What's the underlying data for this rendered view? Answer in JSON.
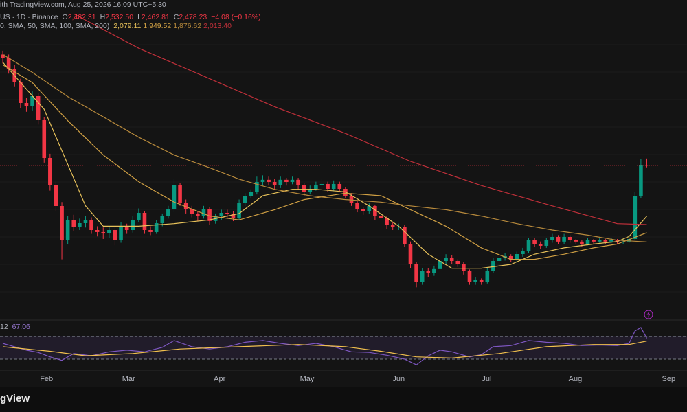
{
  "header": {
    "line1": "ith TradingView.com, Aug 25, 2026 16:09 UTC+5:30",
    "symbol": "US · 1D · Binance",
    "ohlc": [
      {
        "key": "O",
        "value": "2,482.31"
      },
      {
        "key": "H",
        "value": "2,532.50"
      },
      {
        "key": "L",
        "value": "2,462.81"
      },
      {
        "key": "C",
        "value": "2,478.23"
      }
    ],
    "change": "−4.08 (−0.16%)",
    "ma_params": "0, SMA, 50, SMA, 100, SMA, 200)",
    "ma_values": [
      "2,079.11",
      "1,949.52",
      "1,876.62",
      "2,013.40"
    ],
    "rsi_param": "12",
    "rsi_value": "67.06"
  },
  "chart_data": [
    {
      "type": "candlestick",
      "up_color": "#089981",
      "down_color": "#f23645",
      "xlim": [
        -0.47,
        115.8
      ],
      "ylim": [
        1268,
        3779
      ],
      "xticks": [
        {
          "value": 7.4,
          "label": "Feb"
        },
        {
          "value": 21.3,
          "label": "Mar"
        },
        {
          "value": 36.7,
          "label": "Apr"
        },
        {
          "value": 51.5,
          "label": "May"
        },
        {
          "value": 67,
          "label": "Jun"
        },
        {
          "value": 81.9,
          "label": "Jul"
        },
        {
          "value": 96.9,
          "label": "Aug"
        },
        {
          "value": 112.7,
          "label": "Sep"
        }
      ],
      "candles": [
        [
          3350,
          3380,
          3280,
          3320
        ],
        [
          3320,
          3350,
          3200,
          3239
        ],
        [
          3239,
          3270,
          3100,
          3131
        ],
        [
          3131,
          3160,
          2930,
          2969
        ],
        [
          2969,
          3010,
          2900,
          2942
        ],
        [
          2942,
          3060,
          2910,
          3023
        ],
        [
          3023,
          3050,
          2800,
          2834
        ],
        [
          2834,
          2860,
          2500,
          2537
        ],
        [
          2537,
          2570,
          2280,
          2321
        ],
        [
          2321,
          2350,
          2120,
          2159
        ],
        [
          2159,
          2190,
          1740,
          1889
        ],
        [
          1889,
          2080,
          1860,
          2051
        ],
        [
          2051,
          2090,
          1960,
          1997
        ],
        [
          1997,
          2060,
          1970,
          2024
        ],
        [
          2024,
          2080,
          1990,
          2051
        ],
        [
          2051,
          2070,
          1940,
          1970
        ],
        [
          1970,
          2000,
          1920,
          1954
        ],
        [
          1954,
          1990,
          1900,
          1943
        ],
        [
          1943,
          2000,
          1910,
          1970
        ],
        [
          1970,
          1990,
          1850,
          1889
        ],
        [
          1889,
          2030,
          1870,
          1997
        ],
        [
          1997,
          2020,
          1940,
          1970
        ],
        [
          1970,
          2080,
          1950,
          2051
        ],
        [
          2051,
          2140,
          2030,
          2105
        ],
        [
          2105,
          2120,
          1940,
          1970
        ],
        [
          1970,
          2000,
          1930,
          1954
        ],
        [
          1954,
          2050,
          1940,
          2024
        ],
        [
          2024,
          2100,
          2000,
          2078
        ],
        [
          2078,
          2160,
          2060,
          2132
        ],
        [
          2132,
          2370,
          2110,
          2321
        ],
        [
          2321,
          2340,
          2160,
          2186
        ],
        [
          2186,
          2210,
          2100,
          2132
        ],
        [
          2132,
          2160,
          2070,
          2095
        ],
        [
          2095,
          2120,
          2040,
          2078
        ],
        [
          2078,
          2160,
          2060,
          2132
        ],
        [
          2132,
          2150,
          2010,
          2041
        ],
        [
          2041,
          2100,
          2020,
          2078
        ],
        [
          2078,
          2130,
          2050,
          2105
        ],
        [
          2105,
          2130,
          2070,
          2095
        ],
        [
          2095,
          2120,
          2040,
          2062
        ],
        [
          2062,
          2210,
          2050,
          2186
        ],
        [
          2186,
          2260,
          2160,
          2240
        ],
        [
          2240,
          2290,
          2220,
          2267
        ],
        [
          2267,
          2390,
          2250,
          2348
        ],
        [
          2348,
          2400,
          2320,
          2365
        ],
        [
          2365,
          2390,
          2320,
          2348
        ],
        [
          2348,
          2370,
          2290,
          2321
        ],
        [
          2321,
          2390,
          2300,
          2365
        ],
        [
          2365,
          2380,
          2320,
          2348
        ],
        [
          2348,
          2390,
          2330,
          2365
        ],
        [
          2365,
          2380,
          2290,
          2321
        ],
        [
          2321,
          2340,
          2240,
          2267
        ],
        [
          2267,
          2320,
          2250,
          2294
        ],
        [
          2294,
          2350,
          2280,
          2321
        ],
        [
          2321,
          2370,
          2300,
          2332
        ],
        [
          2332,
          2350,
          2270,
          2294
        ],
        [
          2294,
          2360,
          2280,
          2332
        ],
        [
          2332,
          2350,
          2270,
          2294
        ],
        [
          2294,
          2310,
          2220,
          2240
        ],
        [
          2240,
          2260,
          2160,
          2186
        ],
        [
          2186,
          2200,
          2110,
          2132
        ],
        [
          2132,
          2150,
          2090,
          2116
        ],
        [
          2116,
          2180,
          2100,
          2159
        ],
        [
          2159,
          2170,
          2050,
          2078
        ],
        [
          2078,
          2100,
          2040,
          2062
        ],
        [
          2062,
          2080,
          1980,
          2008
        ],
        [
          2008,
          2030,
          1970,
          1997
        ],
        [
          1997,
          2020,
          1970,
          1997
        ],
        [
          1997,
          2010,
          1840,
          1862
        ],
        [
          1862,
          1880,
          1670,
          1700
        ],
        [
          1700,
          1720,
          1520,
          1565
        ],
        [
          1565,
          1670,
          1540,
          1646
        ],
        [
          1646,
          1670,
          1600,
          1630
        ],
        [
          1630,
          1690,
          1610,
          1663
        ],
        [
          1663,
          1750,
          1640,
          1727
        ],
        [
          1727,
          1780,
          1700,
          1754
        ],
        [
          1754,
          1770,
          1700,
          1727
        ],
        [
          1727,
          1740,
          1680,
          1700
        ],
        [
          1700,
          1720,
          1620,
          1646
        ],
        [
          1646,
          1660,
          1540,
          1565
        ],
        [
          1565,
          1600,
          1540,
          1576
        ],
        [
          1576,
          1590,
          1540,
          1565
        ],
        [
          1565,
          1670,
          1550,
          1646
        ],
        [
          1646,
          1750,
          1630,
          1727
        ],
        [
          1727,
          1780,
          1710,
          1754
        ],
        [
          1754,
          1790,
          1730,
          1765
        ],
        [
          1765,
          1780,
          1720,
          1738
        ],
        [
          1738,
          1800,
          1720,
          1781
        ],
        [
          1781,
          1830,
          1760,
          1808
        ],
        [
          1808,
          1910,
          1790,
          1889
        ],
        [
          1889,
          1910,
          1840,
          1862
        ],
        [
          1862,
          1880,
          1820,
          1846
        ],
        [
          1846,
          1910,
          1830,
          1889
        ],
        [
          1889,
          1940,
          1870,
          1916
        ],
        [
          1916,
          1930,
          1860,
          1879
        ],
        [
          1879,
          1940,
          1860,
          1916
        ],
        [
          1916,
          1930,
          1870,
          1889
        ],
        [
          1889,
          1900,
          1860,
          1879
        ],
        [
          1879,
          1890,
          1840,
          1862
        ],
        [
          1862,
          1910,
          1850,
          1889
        ],
        [
          1889,
          1900,
          1860,
          1879
        ],
        [
          1879,
          1910,
          1870,
          1889
        ],
        [
          1889,
          1900,
          1860,
          1879
        ],
        [
          1879,
          1910,
          1870,
          1889
        ],
        [
          1889,
          1900,
          1860,
          1879
        ],
        [
          1879,
          1900,
          1860,
          1879
        ],
        [
          1879,
          1920,
          1870,
          1900
        ],
        [
          1900,
          2270,
          1890,
          2240
        ],
        [
          2240,
          2530,
          2220,
          2483
        ],
        [
          2482.31,
          2532.5,
          2462.81,
          2478.23
        ]
      ],
      "series": [
        {
          "color": "#e8c25a",
          "x": [
            0,
            7,
            14,
            17,
            23,
            29,
            35,
            40,
            44,
            49,
            53,
            58,
            62,
            67,
            72,
            76,
            81,
            86,
            90,
            95,
            100,
            104,
            106,
            109
          ],
          "values": [
            3290,
            2920,
            2160,
            2000,
            2000,
            2020,
            2050,
            2100,
            2240,
            2290,
            2290,
            2270,
            2160,
            2000,
            1780,
            1670,
            1670,
            1700,
            1780,
            1830,
            1860,
            1880,
            1920,
            2079.11
          ]
        },
        {
          "color": "#d0a044",
          "x": [
            0,
            5,
            11,
            17,
            23,
            29,
            35,
            40,
            46,
            51,
            58,
            64,
            69,
            75,
            81,
            86,
            90,
            95,
            100,
            104,
            109
          ],
          "values": [
            3270,
            3130,
            2830,
            2560,
            2350,
            2190,
            2080,
            2050,
            2130,
            2210,
            2260,
            2240,
            2130,
            2000,
            1830,
            1740,
            1740,
            1780,
            1830,
            1860,
            1949.52
          ]
        },
        {
          "color": "#b88a3c",
          "x": [
            0,
            5,
            11,
            17,
            23,
            29,
            35,
            40,
            46,
            52,
            58,
            64,
            69,
            75,
            81,
            87,
            93,
            99,
            104,
            109
          ],
          "values": [
            3350,
            3210,
            3020,
            2860,
            2700,
            2560,
            2460,
            2370,
            2290,
            2240,
            2210,
            2190,
            2160,
            2130,
            2080,
            2020,
            1970,
            1930,
            1890,
            1876.62
          ]
        },
        {
          "color": "#c2303a",
          "x": [
            12,
            23,
            35,
            46,
            58,
            69,
            81,
            93,
            104,
            109
          ],
          "values": [
            3670,
            3400,
            3160,
            2940,
            2730,
            2510,
            2320,
            2160,
            2020,
            2013.4
          ]
        }
      ]
    },
    {
      "type": "line",
      "ylim": [
        15.4,
        97
      ],
      "bands": [
        30,
        70
      ],
      "band_color": "#7e57c2",
      "series": [
        {
          "color": "#7e57c2",
          "x": [
            0,
            2,
            4,
            6,
            8,
            10,
            12,
            15,
            18,
            21,
            24,
            27,
            29,
            32,
            35,
            38,
            41,
            44,
            47,
            50,
            53,
            56,
            59,
            62,
            65,
            68,
            70,
            72,
            74,
            76,
            79,
            81,
            83,
            86,
            89,
            92,
            95,
            98,
            101,
            104,
            106,
            107,
            108,
            109
          ],
          "values": [
            58,
            52,
            46,
            42,
            34,
            28,
            40,
            36,
            43,
            46,
            43,
            51,
            63,
            52,
            48,
            52,
            60,
            63,
            58,
            54,
            58,
            52,
            43,
            42,
            37,
            30,
            20,
            36,
            46,
            43,
            34,
            38,
            52,
            54,
            63,
            60,
            58,
            54,
            55,
            54,
            58,
            80,
            86,
            67.06
          ]
        },
        {
          "color": "#f2c14e",
          "x": [
            0,
            8,
            14,
            22,
            30,
            40,
            50,
            58,
            64,
            70,
            76,
            84,
            92,
            100,
            106,
            109
          ],
          "values": [
            52,
            44,
            36,
            40,
            48,
            52,
            56,
            52,
            44,
            34,
            32,
            40,
            52,
            56,
            56,
            62
          ]
        }
      ]
    }
  ],
  "footer": {
    "logo": "gView"
  }
}
